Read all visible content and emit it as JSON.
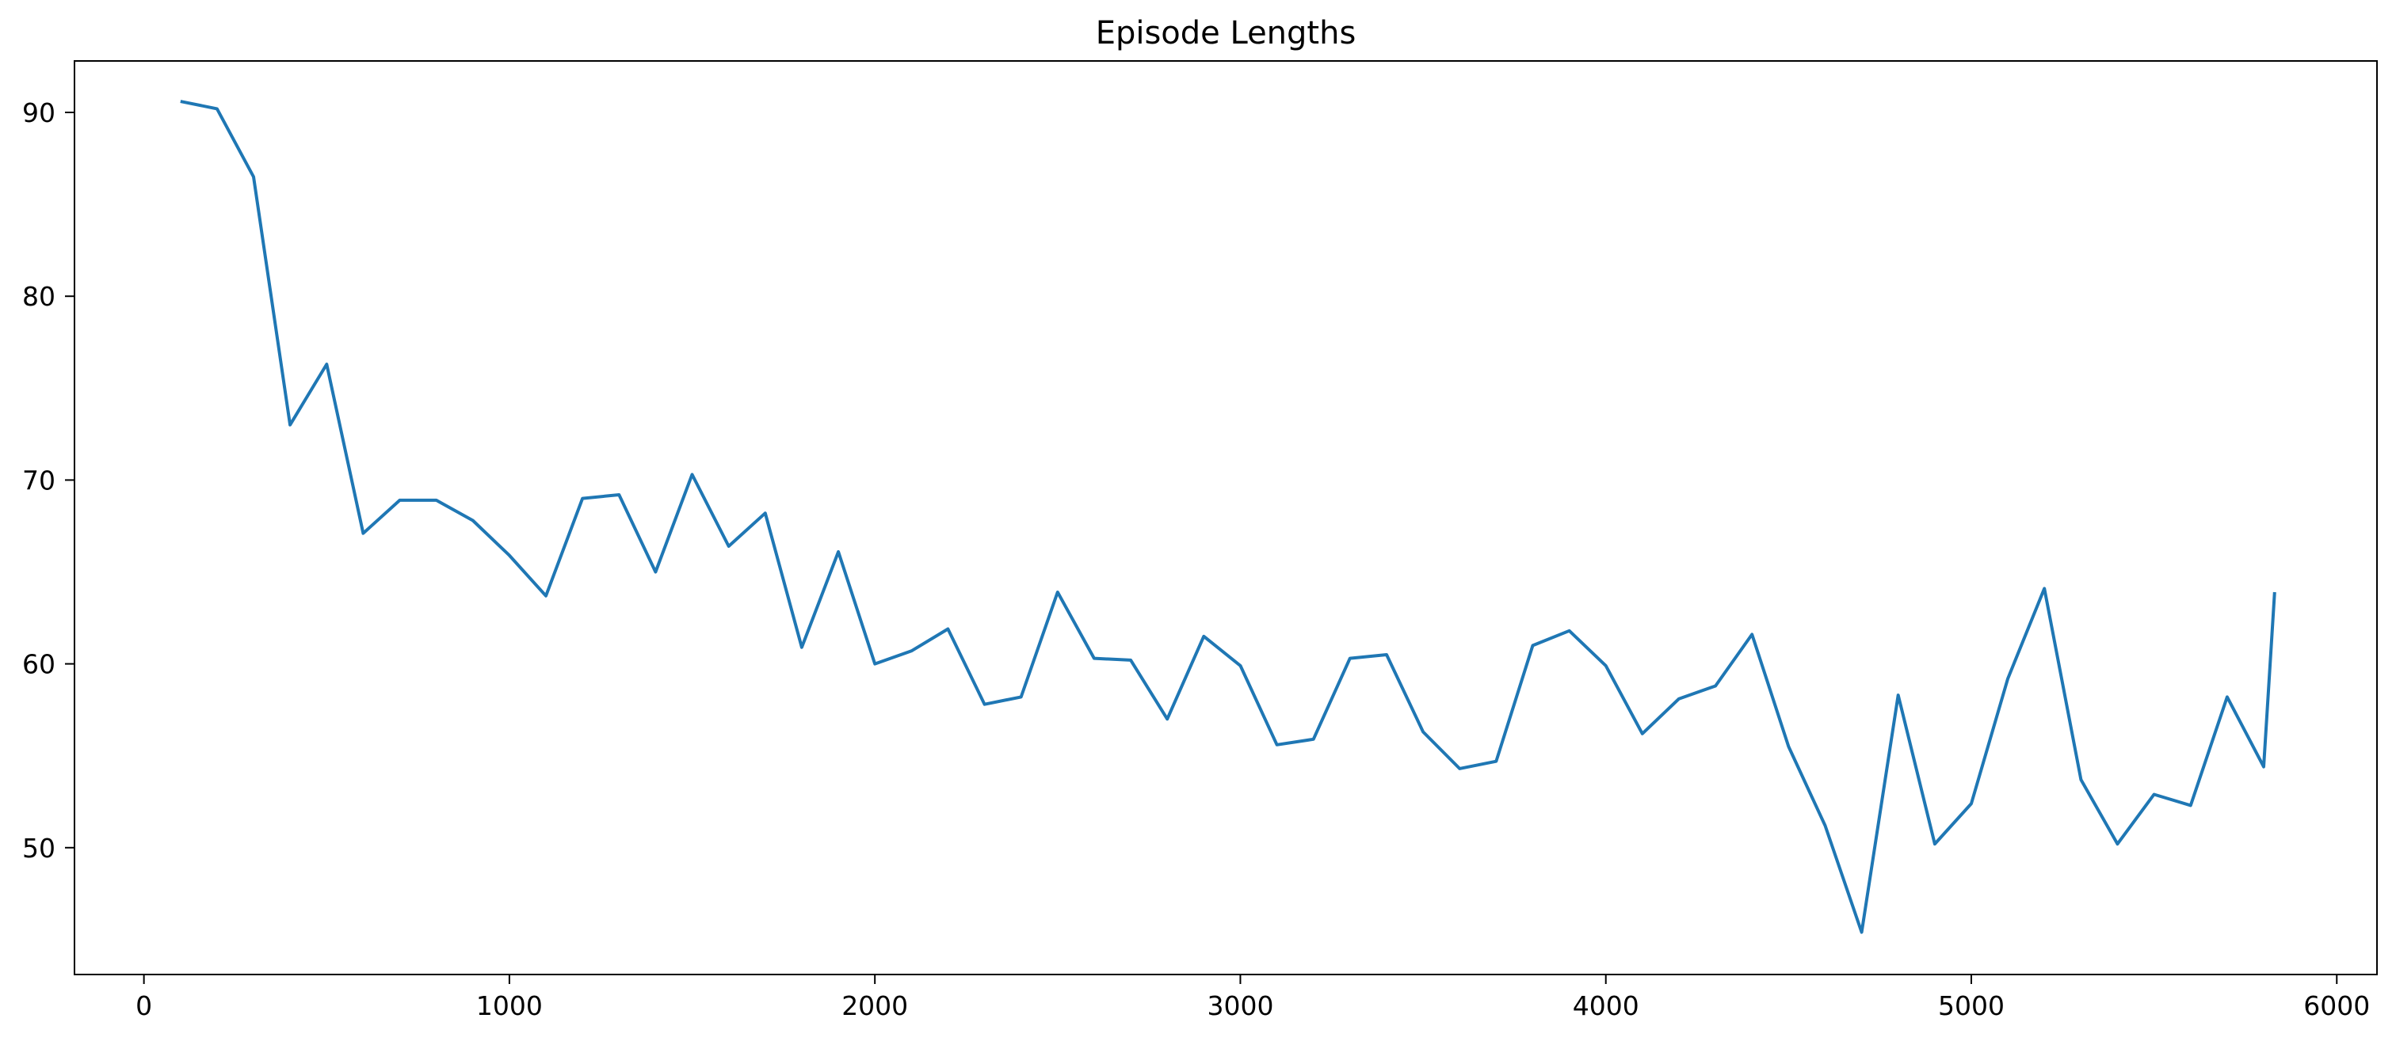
{
  "chart_data": {
    "type": "line",
    "title": "Episode Lengths",
    "xlabel": "",
    "ylabel": "",
    "xlim": [
      -190,
      6110
    ],
    "ylim": [
      43.1,
      92.8
    ],
    "xticks": [
      0,
      1000,
      2000,
      3000,
      4000,
      5000,
      6000
    ],
    "yticks": [
      50,
      60,
      70,
      80,
      90
    ],
    "grid": false,
    "line_color": "#1f77b4",
    "series": [
      {
        "x": [
          100,
          200,
          300,
          400,
          500,
          600,
          700,
          800,
          900,
          1000,
          1100,
          1200,
          1300,
          1400,
          1500,
          1600,
          1700,
          1800,
          1900,
          2000,
          2100,
          2200,
          2300,
          2400,
          2500,
          2600,
          2700,
          2800,
          2900,
          3000,
          3100,
          3200,
          3300,
          3400,
          3500,
          3600,
          3700,
          3800,
          3900,
          4000,
          4100,
          4200,
          4300,
          4400,
          4500,
          4600,
          4700,
          4800,
          4900,
          5000,
          5100,
          5200,
          5300,
          5400,
          5500,
          5600,
          5700,
          5800,
          5830
        ],
        "values": [
          90.6,
          90.2,
          86.5,
          73.0,
          76.3,
          67.1,
          68.9,
          68.9,
          67.8,
          65.9,
          63.7,
          69.0,
          69.2,
          65.0,
          70.3,
          66.4,
          68.2,
          60.9,
          66.1,
          60.0,
          60.7,
          61.9,
          57.8,
          58.2,
          63.9,
          60.3,
          60.2,
          57.0,
          61.5,
          59.9,
          55.6,
          55.9,
          60.3,
          60.5,
          56.3,
          54.3,
          54.7,
          61.0,
          61.8,
          59.9,
          56.2,
          58.1,
          58.8,
          61.6,
          55.5,
          51.2,
          45.4,
          58.3,
          50.2,
          52.4,
          59.2,
          64.1,
          53.7,
          50.2,
          52.9,
          52.3,
          58.2,
          54.4,
          63.9
        ]
      }
    ]
  }
}
